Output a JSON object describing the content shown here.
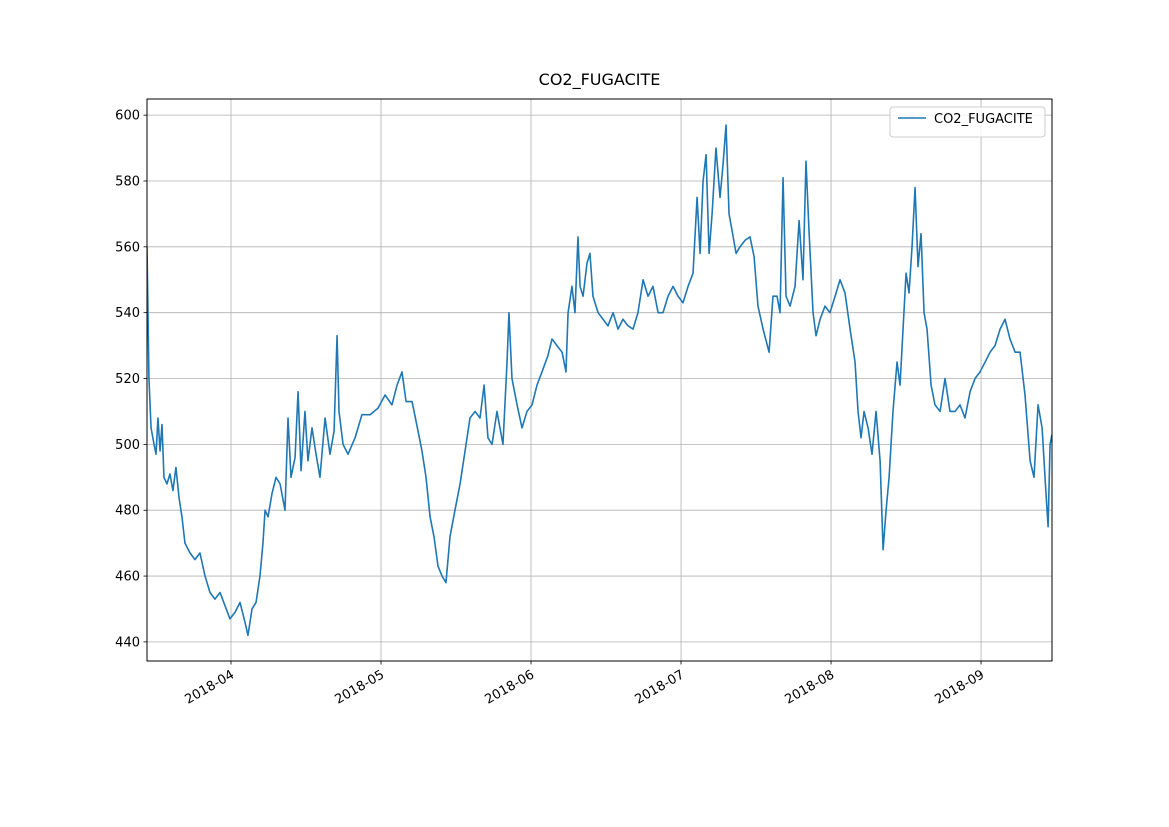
{
  "chart_data": {
    "type": "line",
    "title": "CO2_FUGACITE",
    "x": [
      3.44,
      3.453,
      3.467,
      3.487,
      3.5,
      3.513,
      3.527,
      3.54,
      3.553,
      3.573,
      3.593,
      3.613,
      3.633,
      3.653,
      3.673,
      3.693,
      3.727,
      3.76,
      3.793,
      3.827,
      3.86,
      3.893,
      3.927,
      3.96,
      3.993,
      4.027,
      4.06,
      4.093,
      4.113,
      4.14,
      4.167,
      4.193,
      4.213,
      4.227,
      4.247,
      4.273,
      4.3,
      4.327,
      4.36,
      4.38,
      4.4,
      4.427,
      4.447,
      4.467,
      4.493,
      4.513,
      4.54,
      4.567,
      4.593,
      4.627,
      4.66,
      4.687,
      4.707,
      4.72,
      4.747,
      4.78,
      4.827,
      4.873,
      4.927,
      4.98,
      5.027,
      5.073,
      5.107,
      5.14,
      5.167,
      5.207,
      5.247,
      5.273,
      5.3,
      5.327,
      5.353,
      5.38,
      5.407,
      5.433,
      5.46,
      5.493,
      5.527,
      5.567,
      5.593,
      5.627,
      5.66,
      5.687,
      5.713,
      5.74,
      5.773,
      5.813,
      5.84,
      5.853,
      5.873,
      5.907,
      5.94,
      5.973,
      6.007,
      6.04,
      6.073,
      6.113,
      6.14,
      6.173,
      6.207,
      6.233,
      6.247,
      6.273,
      6.293,
      6.313,
      6.327,
      6.347,
      6.373,
      6.393,
      6.413,
      6.447,
      6.48,
      6.513,
      6.547,
      6.58,
      6.613,
      6.647,
      6.68,
      6.713,
      6.747,
      6.78,
      6.813,
      6.847,
      6.88,
      6.913,
      6.947,
      6.98,
      7.013,
      7.047,
      7.08,
      7.107,
      7.127,
      7.147,
      7.167,
      7.187,
      7.207,
      7.233,
      7.26,
      7.28,
      7.3,
      7.32,
      7.34,
      7.367,
      7.393,
      7.427,
      7.46,
      7.487,
      7.513,
      7.547,
      7.587,
      7.613,
      7.64,
      7.66,
      7.68,
      7.7,
      7.727,
      7.76,
      7.787,
      7.813,
      7.833,
      7.853,
      7.88,
      7.9,
      7.927,
      7.96,
      7.993,
      8.027,
      8.06,
      8.093,
      8.127,
      8.16,
      8.18,
      8.2,
      8.22,
      8.247,
      8.273,
      8.3,
      8.327,
      8.347,
      8.367,
      8.387,
      8.413,
      8.44,
      8.46,
      8.48,
      8.5,
      8.52,
      8.54,
      8.56,
      8.58,
      8.6,
      8.62,
      8.64,
      8.667,
      8.693,
      8.727,
      8.76,
      8.793,
      8.827,
      8.86,
      8.893,
      8.927,
      8.96,
      8.993,
      9.027,
      9.06,
      9.093,
      9.127,
      9.16,
      9.193,
      9.227,
      9.26,
      9.293,
      9.327,
      9.353,
      9.38,
      9.407,
      9.433,
      9.447,
      9.46,
      9.473
    ],
    "series": [
      {
        "name": "CO2_FUGACITE",
        "color": "#1f77b4",
        "values": [
          560,
          520,
          505,
          500,
          497,
          508,
          498,
          506,
          490,
          488,
          491,
          486,
          493,
          484,
          478,
          470,
          467,
          465,
          467,
          460,
          455,
          453,
          455,
          451,
          447,
          449,
          452,
          446,
          442,
          450,
          452,
          460,
          470,
          480,
          478,
          485,
          490,
          488,
          480,
          508,
          490,
          496,
          516,
          492,
          510,
          495,
          505,
          497,
          490,
          508,
          497,
          504,
          533,
          510,
          500,
          497,
          502,
          509,
          509,
          511,
          515,
          512,
          518,
          522,
          513,
          513,
          504,
          498,
          490,
          478,
          472,
          463,
          460,
          458,
          472,
          480,
          488,
          500,
          508,
          510,
          508,
          518,
          502,
          500,
          510,
          500,
          525,
          540,
          520,
          512,
          505,
          510,
          512,
          518,
          522,
          527,
          532,
          530,
          528,
          522,
          540,
          548,
          540,
          563,
          548,
          545,
          555,
          558,
          545,
          540,
          538,
          536,
          540,
          535,
          538,
          536,
          535,
          540,
          550,
          545,
          548,
          540,
          540,
          545,
          548,
          545,
          543,
          548,
          552,
          575,
          558,
          580,
          588,
          558,
          570,
          590,
          575,
          585,
          597,
          570,
          565,
          558,
          560,
          562,
          563,
          557,
          542,
          535,
          528,
          545,
          545,
          540,
          581,
          545,
          542,
          548,
          568,
          550,
          586,
          565,
          540,
          533,
          538,
          542,
          540,
          545,
          550,
          546,
          535,
          525,
          510,
          502,
          510,
          505,
          497,
          510,
          495,
          468,
          480,
          490,
          510,
          525,
          518,
          535,
          552,
          546,
          560,
          578,
          554,
          564,
          540,
          535,
          518,
          512,
          510,
          520,
          510,
          510,
          512,
          508,
          516,
          520,
          522,
          525,
          528,
          530,
          535,
          538,
          532,
          528,
          528,
          515,
          495,
          490,
          512,
          505,
          485,
          475,
          500,
          503
        ]
      }
    ],
    "xlim": [
      3.44,
      9.473
    ],
    "xticks": [
      {
        "value": 4,
        "label": "2018-04"
      },
      {
        "value": 5,
        "label": "2018-05"
      },
      {
        "value": 6,
        "label": "2018-06"
      },
      {
        "value": 7,
        "label": "2018-07"
      },
      {
        "value": 8,
        "label": "2018-08"
      },
      {
        "value": 9,
        "label": "2018-09"
      }
    ],
    "ylim": [
      434.2,
      604.9
    ],
    "yticks": [
      440,
      460,
      480,
      500,
      520,
      540,
      560,
      580,
      600
    ],
    "grid": true,
    "legend": "upper right"
  }
}
